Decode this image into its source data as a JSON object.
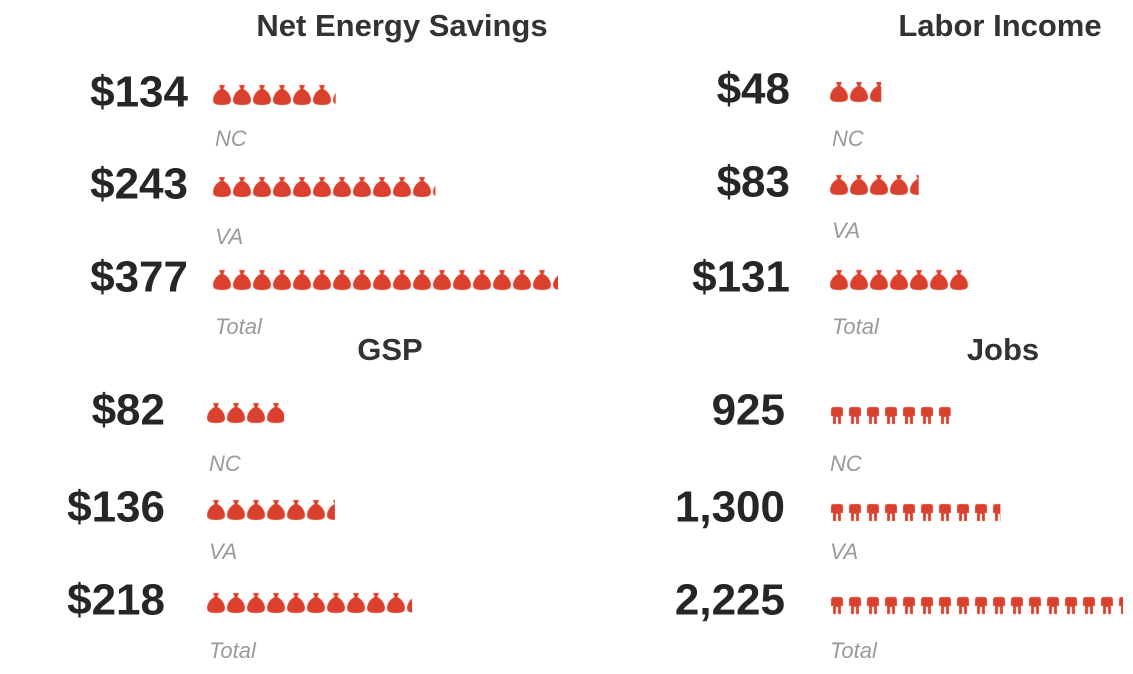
{
  "chart_data": [
    {
      "type": "pictogram",
      "icon": "money-bag",
      "title": "Net Energy Savings",
      "color": "#d9412e",
      "categories": [
        "NC",
        "VA",
        "Total"
      ],
      "values": [
        134,
        243,
        377
      ],
      "value_labels": [
        "$134",
        "$243",
        "$377"
      ]
    },
    {
      "type": "pictogram",
      "icon": "money-bag",
      "title": "Labor Income",
      "color": "#d9412e",
      "categories": [
        "NC",
        "VA",
        "Total"
      ],
      "values": [
        48,
        83,
        131
      ],
      "value_labels": [
        "$48",
        "$83",
        "$131"
      ]
    },
    {
      "type": "pictogram",
      "icon": "money-bag",
      "title": "GSP",
      "color": "#d9412e",
      "categories": [
        "NC",
        "VA",
        "Total"
      ],
      "values": [
        82,
        136,
        218
      ],
      "value_labels": [
        "$82",
        "$136",
        "$218"
      ]
    },
    {
      "type": "pictogram",
      "icon": "person",
      "title": "Jobs",
      "color": "#d9412e",
      "categories": [
        "NC",
        "VA",
        "Total"
      ],
      "values": [
        925,
        1300,
        2225
      ],
      "value_labels": [
        "925",
        "1,300",
        "2,225"
      ]
    }
  ]
}
